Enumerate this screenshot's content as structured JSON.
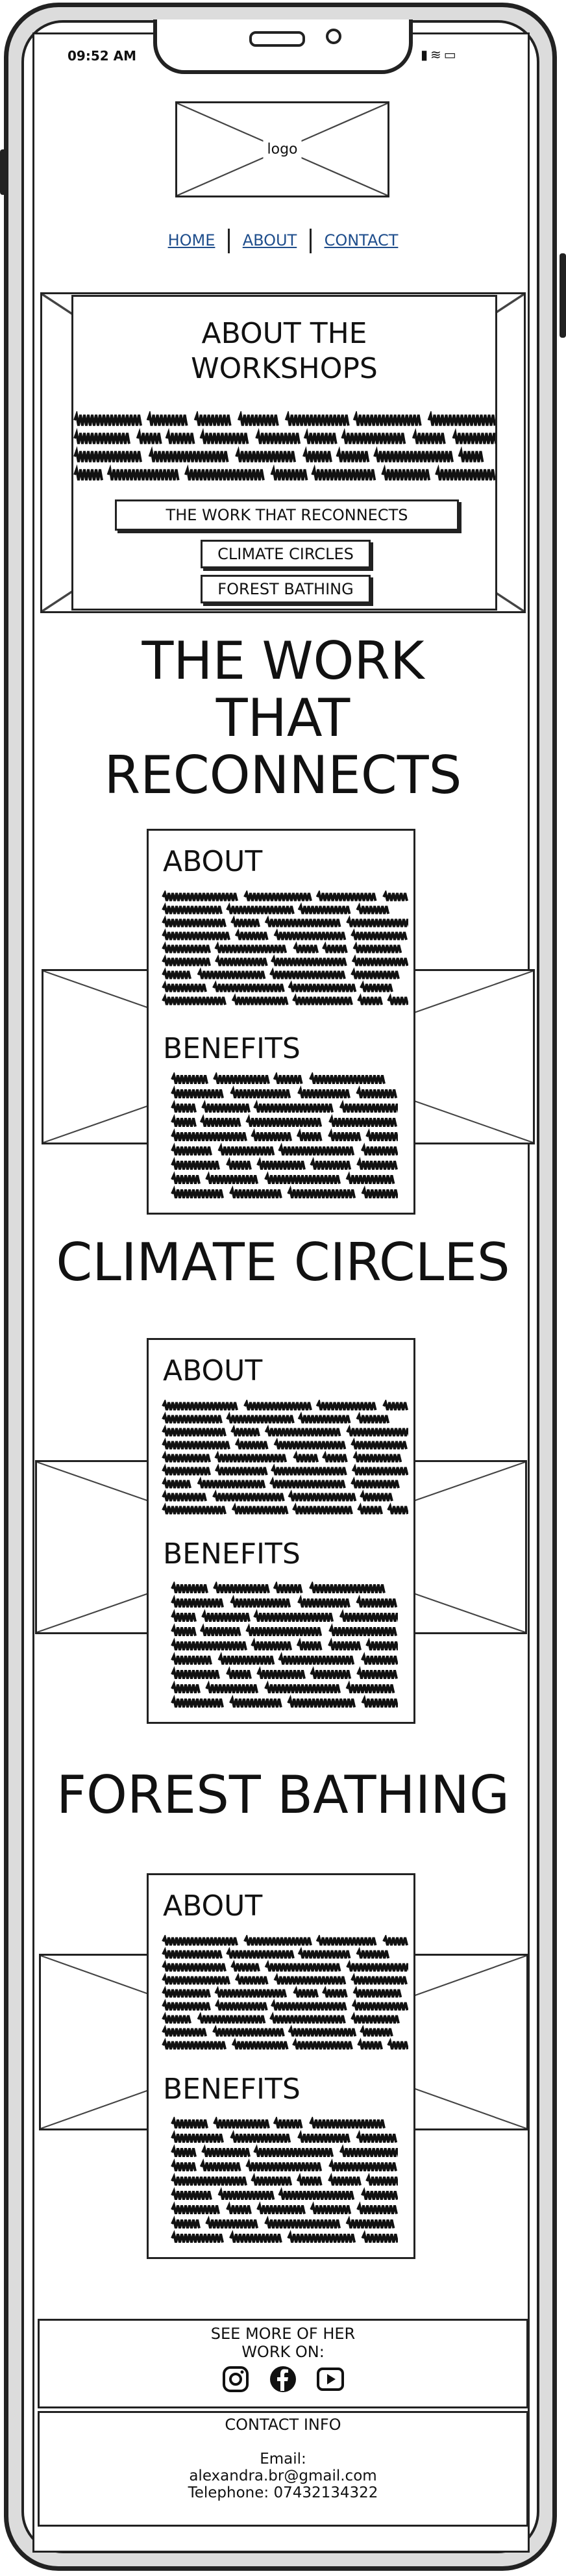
{
  "status_bar": {
    "time": "09:52 AM"
  },
  "header": {
    "logo_label": "logo"
  },
  "nav": {
    "home": "HOME",
    "about": "ABOUT",
    "contact": "CONTACT"
  },
  "hero": {
    "title_line1": "ABOUT THE",
    "title_line2": "WORKSHOPS",
    "buttons": [
      "THE WORK THAT RECONNECTS",
      "CLIMATE CIRCLES",
      "FOREST BATHING"
    ]
  },
  "sections": [
    {
      "title_lines": [
        "THE WORK",
        "THAT",
        "RECONNECTS"
      ],
      "about": "ABOUT",
      "benefits": "BENEFITS"
    },
    {
      "title_lines": [
        "CLIMATE CIRCLES"
      ],
      "about": "ABOUT",
      "benefits": "BENEFITS"
    },
    {
      "title_lines": [
        "FOREST BATHING"
      ],
      "about": "ABOUT",
      "benefits": "BENEFITS"
    }
  ],
  "footer": {
    "see_more_line1": "SEE MORE OF HER",
    "see_more_line2": "WORK ON:",
    "icons": [
      "instagram-icon",
      "facebook-icon",
      "youtube-icon"
    ],
    "contact_title": "CONTACT INFO",
    "email_label": "Email:",
    "email": "alexandra.br@gmail.com",
    "telephone": "Telephone: 07432134322"
  }
}
